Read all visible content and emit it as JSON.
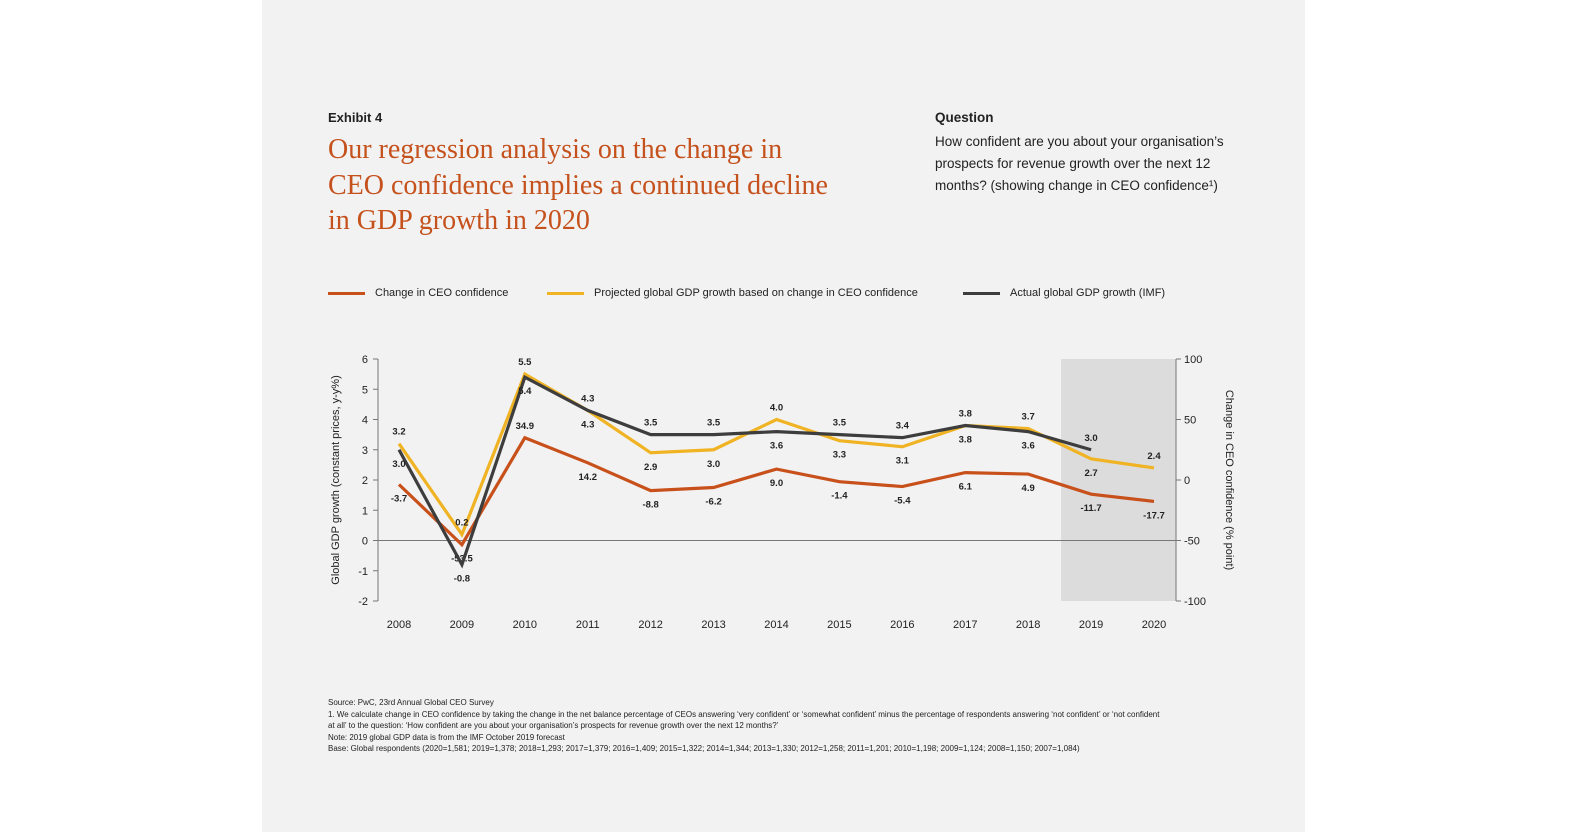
{
  "header": {
    "exhibit": "Exhibit 4",
    "title": "Our regression analysis on the change in CEO confidence implies a continued decline in GDP growth in 2020",
    "question_label": "Question",
    "question_text": "How confident are you about your organisation’s prospects for revenue growth over the next 12 months? (showing change in CEO confidence¹)"
  },
  "colors": {
    "ceo": "#c8501b",
    "projected": "#f0b323",
    "actual": "#3d3d3d",
    "title": "#c5511d",
    "forecast_band": "#dcdcdc"
  },
  "chart_data": {
    "type": "line",
    "categories": [
      "2008",
      "2009",
      "2010",
      "2011",
      "2012",
      "2013",
      "2014",
      "2015",
      "2016",
      "2017",
      "2018",
      "2019",
      "2020"
    ],
    "ylabel": "Global GDP growth (constant prices, y-y%)",
    "y2label": "Change in CEO confidence (% point)",
    "ylim": [
      -2,
      6
    ],
    "y2lim": [
      -100,
      100
    ],
    "yticks": [
      "6",
      "5",
      "4",
      "3",
      "2",
      "1",
      "0",
      "-1",
      "-2"
    ],
    "y2ticks": [
      "100",
      "50",
      "0",
      "-50",
      "-100"
    ],
    "grid": false,
    "legend_placement": "top",
    "shaded_years": [
      "2019",
      "2020"
    ],
    "series": [
      {
        "name": "Change in CEO confidence",
        "axis": "right",
        "values": [
          -3.7,
          -53.5,
          34.9,
          14.2,
          -8.8,
          -6.2,
          9.0,
          -1.4,
          -5.4,
          6.1,
          4.9,
          -11.7,
          -17.7
        ],
        "labels": [
          "-3.7",
          "-53.5",
          "34.9",
          "14.2",
          "-8.8",
          "-6.2",
          "9.0",
          "-1.4",
          "-5.4",
          "6.1",
          "4.9",
          "-11.7",
          "-17.7"
        ]
      },
      {
        "name": "Projected global GDP growth based on change in CEO confidence",
        "axis": "left",
        "values": [
          3.2,
          0.2,
          5.5,
          4.3,
          2.9,
          3.0,
          4.0,
          3.3,
          3.1,
          3.8,
          3.7,
          2.7,
          2.4
        ],
        "labels": [
          "3.2",
          "0.2",
          "5.5",
          "4.3",
          "2.9",
          "3.0",
          "4.0",
          "3.3",
          "3.1",
          "3.8",
          "3.7",
          "2.7",
          "2.4"
        ]
      },
      {
        "name": "Actual global GDP growth (IMF)",
        "axis": "left",
        "values": [
          3.0,
          -0.8,
          5.4,
          4.3,
          3.5,
          3.5,
          3.6,
          3.5,
          3.4,
          3.8,
          3.6,
          3.0,
          null
        ],
        "labels": [
          "3.0",
          "-0.8",
          "5.4",
          "4.3",
          "3.5",
          "3.5",
          "3.6",
          "3.5",
          "3.4",
          "3.8",
          "3.6",
          "3.0",
          ""
        ]
      }
    ]
  },
  "notes": {
    "source": "Source: PwC, 23rd Annual Global CEO Survey",
    "footnote1": "1. We calculate change in CEO confidence by taking the change in the net balance percentage of CEOs answering ‘very confident’ or ‘somewhat confident’ minus the percentage of respondents answering ‘not confident’ or ‘not confident at all’ to the question: ‘How confident are you about your organisation’s prospects for revenue growth over the next 12 months?’",
    "note": "Note: 2019 global GDP data is from the IMF October 2019 forecast",
    "base": "Base: Global respondents (2020=1,581; 2019=1,378; 2018=1,293; 2017=1,379; 2016=1,409; 2015=1,322; 2014=1,344; 2013=1,330; 2012=1,258; 2011=1,201; 2010=1,198; 2009=1,124; 2008=1,150; 2007=1,084)"
  }
}
